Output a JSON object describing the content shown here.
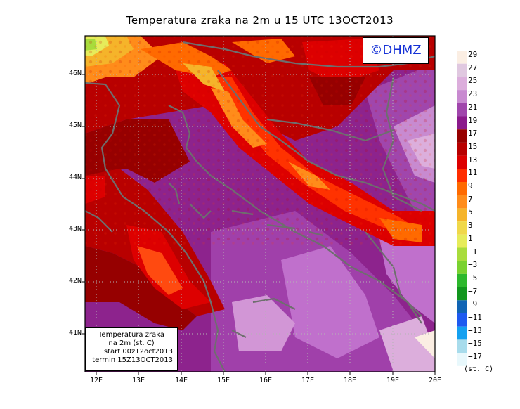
{
  "title": "Temperatura zraka na 2m u 15 UTC 13OCT2013",
  "watermark": "©DHMZ",
  "x_ticks": [
    "12E",
    "13E",
    "14E",
    "15E",
    "16E",
    "17E",
    "18E",
    "19E",
    "20E"
  ],
  "y_ticks": [
    "46N",
    "45N",
    "44N",
    "43N",
    "42N",
    "41N"
  ],
  "info_box": {
    "line1": "Temperatura zraka",
    "line2": "na 2m (st. C)",
    "line3": "start 00z12oct2013",
    "line4": "termin 15Z13OCT2013"
  },
  "legend": {
    "unit": "(st. C)",
    "labels": [
      "29",
      "27",
      "25",
      "23",
      "21",
      "19",
      "17",
      "15",
      "13",
      "11",
      "9",
      "7",
      "5",
      "3",
      "1",
      "−1",
      "−3",
      "−5",
      "−7",
      "−9",
      "−11",
      "−13",
      "−15",
      "−17"
    ],
    "colors": [
      "#fbeee3",
      "#e0c8e0",
      "#dcaedc",
      "#c88ad0",
      "#a046ac",
      "#8b1a8b",
      "#960000",
      "#b80000",
      "#dd0000",
      "#ff2d00",
      "#ff6a00",
      "#ff8c1a",
      "#f5b42a",
      "#f0d84a",
      "#e6ec5a",
      "#a8dc3c",
      "#7ad230",
      "#2db82d",
      "#12961e",
      "#1064b4",
      "#1e5af0",
      "#14a0f0",
      "#a8dcec",
      "#e8f8fc"
    ]
  }
}
